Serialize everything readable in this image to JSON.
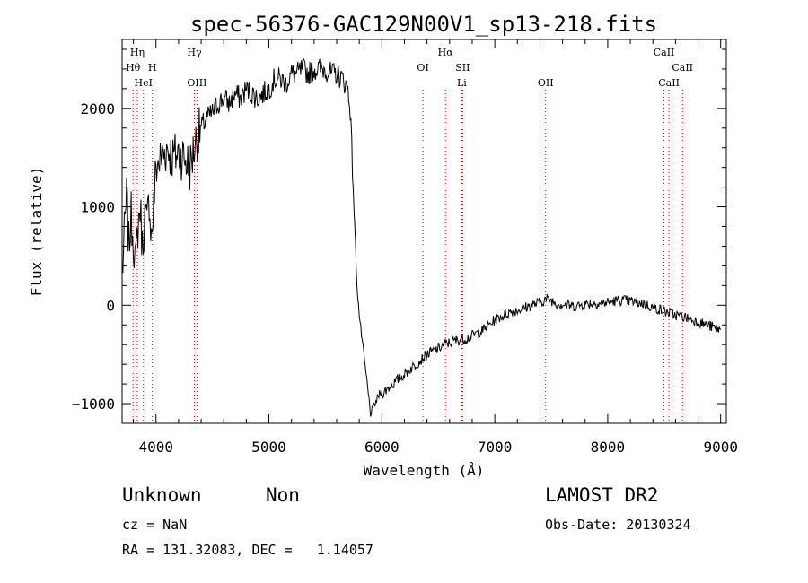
{
  "chart_data": {
    "type": "line",
    "title": "spec-56376-GAC129N00V1_sp13-218.fits",
    "xlabel": "Wavelength (Å)",
    "ylabel": "Flux (relative)",
    "xlim": [
      3700,
      9050
    ],
    "ylim": [
      -1200,
      2700
    ],
    "xticks": [
      4000,
      5000,
      6000,
      7000,
      8000,
      9000
    ],
    "yticks": [
      -1000,
      0,
      1000,
      2000
    ],
    "grid": false,
    "line_color": "#000000",
    "marker_color": "#cc0000",
    "series": [
      {
        "x": [
          3700,
          3720,
          3740,
          3760,
          3780,
          3800,
          3820,
          3840,
          3860,
          3880,
          3900,
          3920,
          3940,
          3960,
          3980,
          4000,
          4050,
          4100,
          4150,
          4200,
          4250,
          4300,
          4340,
          4360,
          4400,
          4450,
          4500,
          4550,
          4600,
          4650,
          4700,
          4750,
          4800,
          4850,
          4900,
          4950,
          5000,
          5050,
          5100,
          5150,
          5200,
          5250,
          5300,
          5350,
          5400,
          5450,
          5500,
          5550,
          5600,
          5650,
          5700,
          5720,
          5740,
          5760,
          5780,
          5800,
          5820,
          5840,
          5860,
          5880,
          5900,
          5920,
          5940,
          5960,
          5980,
          6000,
          6050,
          6100,
          6150,
          6200,
          6250,
          6300,
          6350,
          6400,
          6450,
          6500,
          6550,
          6600,
          6650,
          6700,
          6750,
          6800,
          6850,
          6900,
          6950,
          7000,
          7050,
          7100,
          7150,
          7200,
          7250,
          7300,
          7350,
          7400,
          7450,
          7500,
          7550,
          7600,
          7650,
          7700,
          7750,
          7800,
          7850,
          7900,
          7950,
          8000,
          8050,
          8100,
          8150,
          8200,
          8250,
          8300,
          8350,
          8400,
          8450,
          8500,
          8550,
          8600,
          8650,
          8700,
          8750,
          8800,
          8850,
          8900,
          8950,
          9000
        ],
        "y": [
          300,
          700,
          1100,
          600,
          900,
          700,
          400,
          800,
          1000,
          600,
          900,
          800,
          1100,
          700,
          1000,
          1400,
          1500,
          1600,
          1500,
          1550,
          1500,
          1400,
          1600,
          1700,
          1800,
          1900,
          1950,
          2050,
          2100,
          2050,
          2150,
          2100,
          2200,
          2150,
          2100,
          2150,
          2200,
          2300,
          2300,
          2250,
          2350,
          2350,
          2400,
          2350,
          2400,
          2400,
          2400,
          2350,
          2350,
          2300,
          2200,
          2000,
          1400,
          800,
          200,
          -100,
          -300,
          -500,
          -700,
          -900,
          -1100,
          -1050,
          -1000,
          -950,
          -900,
          -900,
          -850,
          -800,
          -750,
          -700,
          -650,
          -600,
          -550,
          -500,
          -470,
          -440,
          -400,
          -380,
          -360,
          -350,
          -340,
          -310,
          -280,
          -250,
          -200,
          -150,
          -120,
          -90,
          -60,
          -50,
          -30,
          -10,
          10,
          30,
          60,
          50,
          20,
          10,
          0,
          -10,
          0,
          10,
          20,
          20,
          20,
          30,
          40,
          50,
          50,
          40,
          30,
          20,
          0,
          -20,
          -40,
          -60,
          -80,
          -100,
          -110,
          -130,
          -150,
          -170,
          -190,
          -210,
          -230,
          -250
        ]
      }
    ],
    "annotations": [
      {
        "label": "Hη",
        "x": 3835,
        "row": 1
      },
      {
        "label": "Hθ",
        "x": 3797,
        "row": 2
      },
      {
        "label": "H",
        "x": 3968,
        "row": 2
      },
      {
        "label": "HeI",
        "x": 3889,
        "row": 3
      },
      {
        "label": "Hγ",
        "x": 4340,
        "row": 1
      },
      {
        "label": "OIII",
        "x": 4363,
        "row": 3
      },
      {
        "label": "Hα",
        "x": 6563,
        "row": 1
      },
      {
        "label": "OI",
        "x": 6364,
        "row": 2
      },
      {
        "label": "SII",
        "x": 6716,
        "row": 2
      },
      {
        "label": "Li",
        "x": 6708,
        "row": 3
      },
      {
        "label": "OII",
        "x": 7450,
        "row": 3
      },
      {
        "label": "CaII",
        "x": 8498,
        "row": 1
      },
      {
        "label": "CaII",
        "x": 8662,
        "row": 2
      },
      {
        "label": "CaII",
        "x": 8542,
        "row": 3
      }
    ]
  },
  "info": {
    "class": "Unknown",
    "subclass": "Non",
    "survey": "LAMOST DR2",
    "cz": "cz = NaN",
    "obs_date": "Obs-Date: 20130324",
    "coords": "RA = 131.32083, DEC =   1.14057"
  }
}
